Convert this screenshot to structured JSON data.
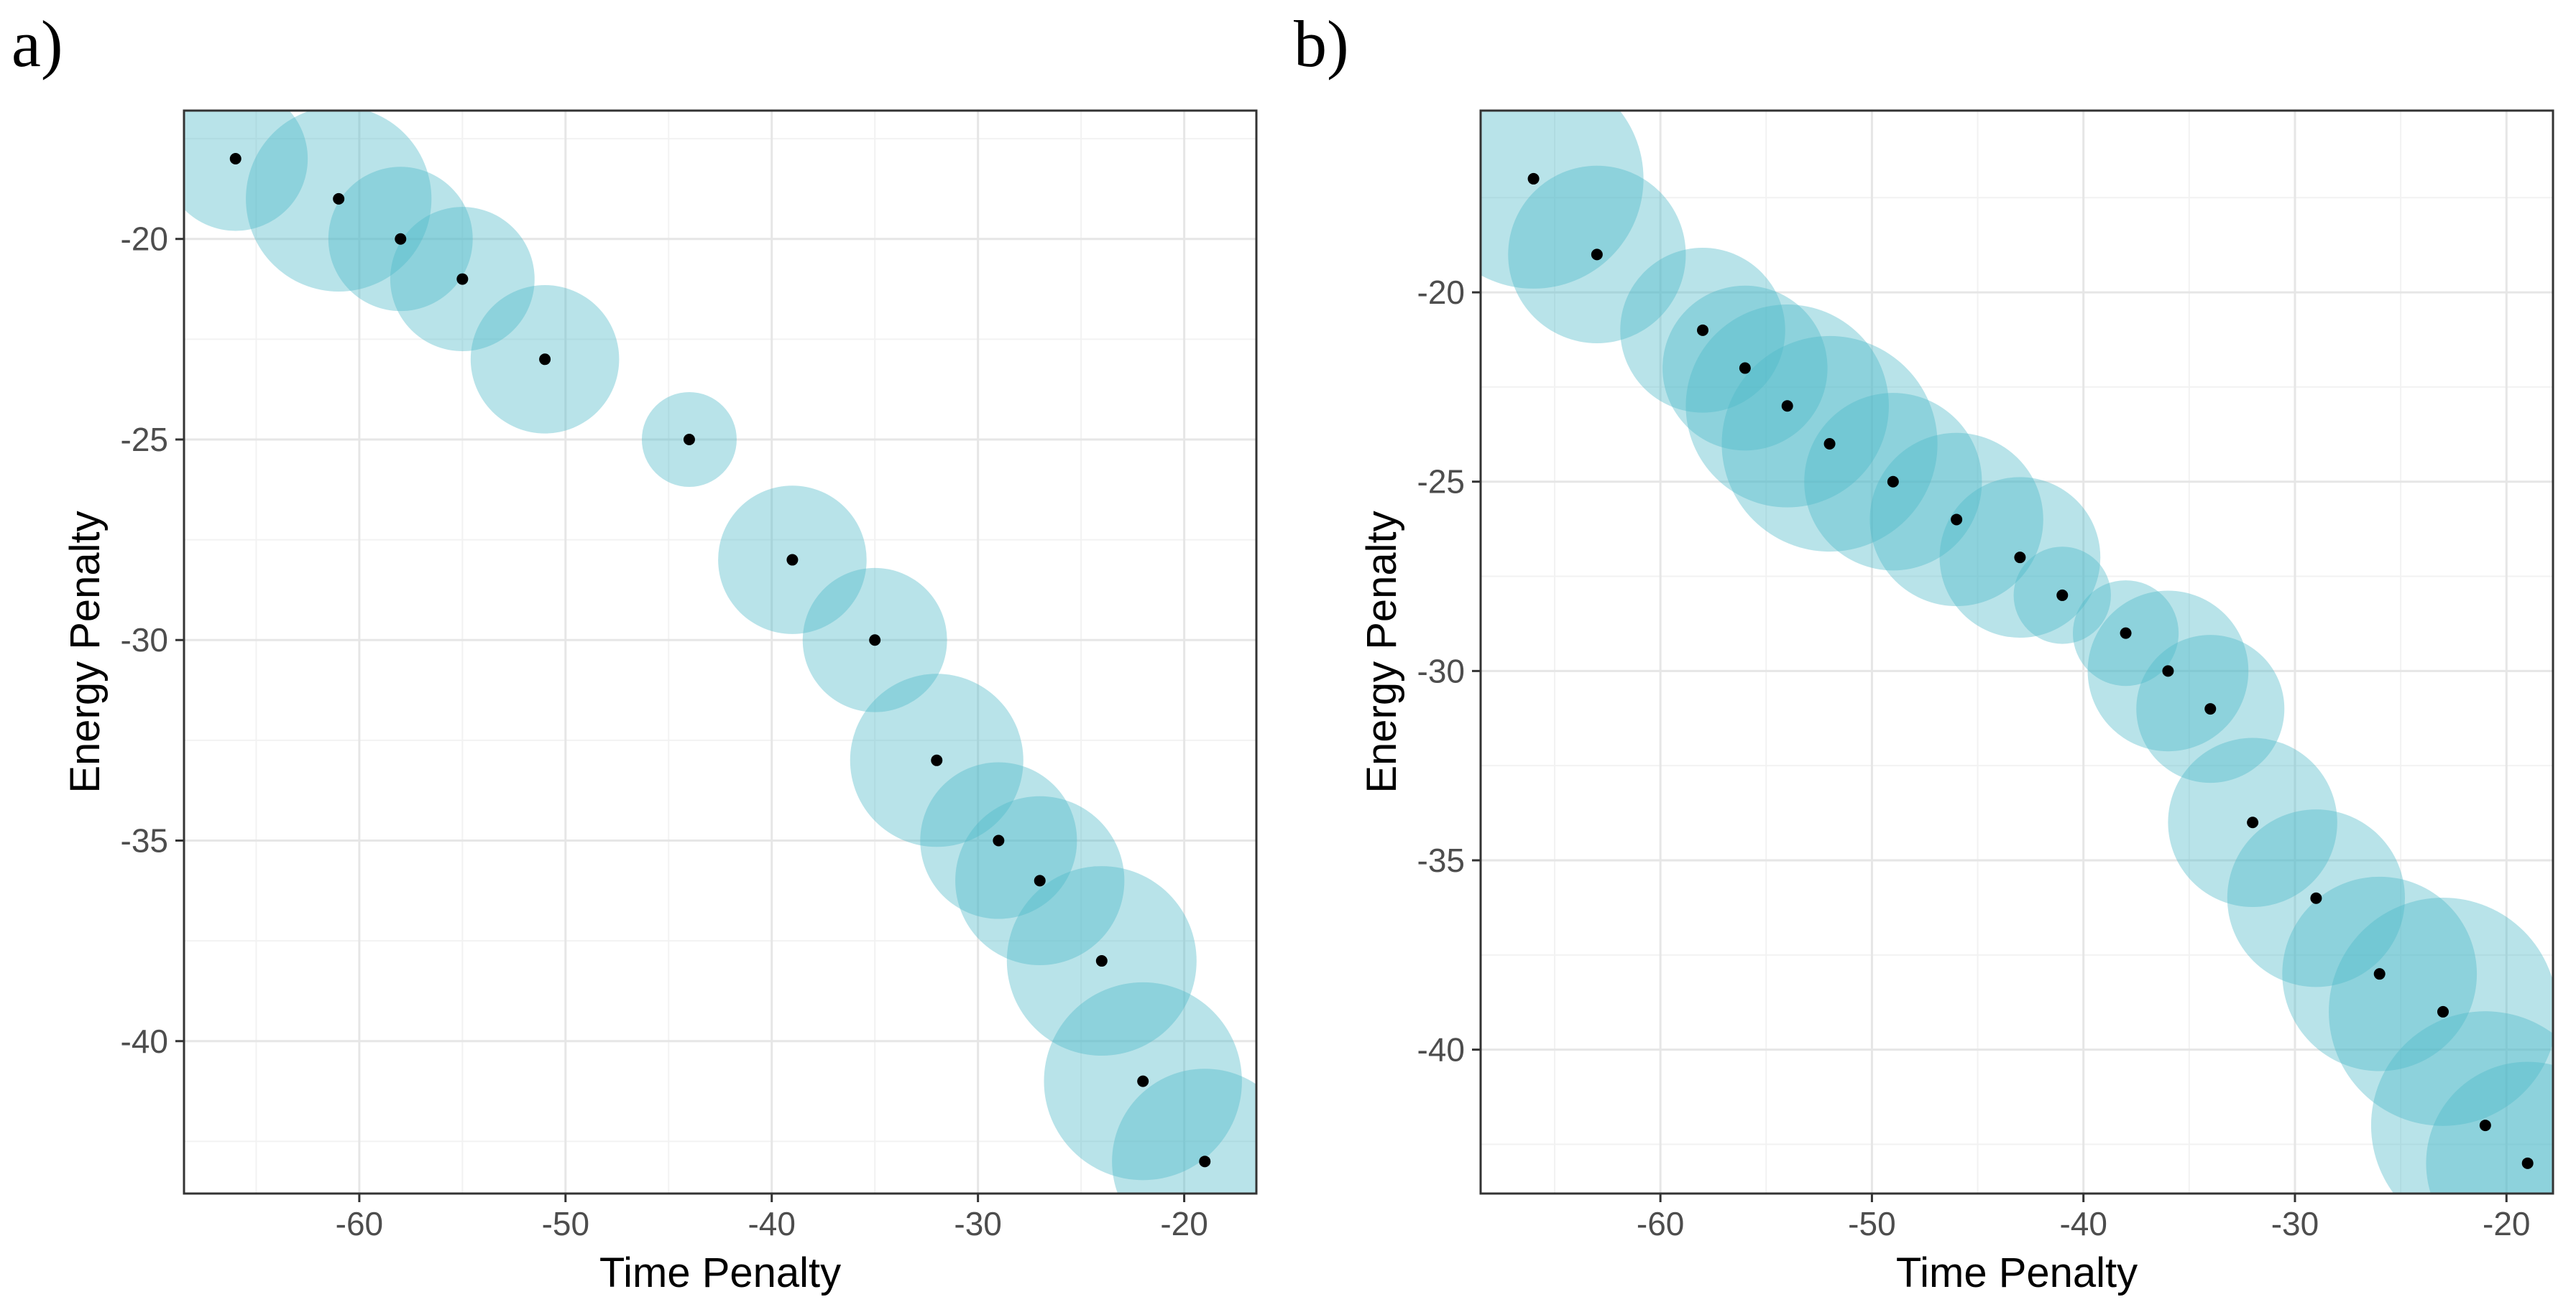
{
  "colors": {
    "bubble": "#4db8c8",
    "point": "#000000",
    "bubble_opacity": 0.4
  },
  "chart_data": [
    {
      "panel_label": "a)",
      "type": "scatter",
      "xlabel": "Time Penalty",
      "ylabel": "Energy Penalty",
      "xlim": [
        -68.5,
        -16.5
      ],
      "ylim": [
        -43.8,
        -16.8
      ],
      "xticks": [
        -60,
        -50,
        -40,
        -30,
        -20
      ],
      "yticks": [
        -20,
        -25,
        -30,
        -35,
        -40
      ],
      "xtick_labels": [
        "-60",
        "-50",
        "-40",
        "-30",
        "-20"
      ],
      "ytick_labels": [
        "-20",
        "-25",
        "-30",
        "-35",
        "-40"
      ],
      "points": [
        {
          "x": -66,
          "y": -18,
          "size": 3.5
        },
        {
          "x": -61,
          "y": -19,
          "size": 4.5
        },
        {
          "x": -58,
          "y": -20,
          "size": 3.5
        },
        {
          "x": -55,
          "y": -21,
          "size": 3.5
        },
        {
          "x": -51,
          "y": -23,
          "size": 3.6
        },
        {
          "x": -44,
          "y": -25,
          "size": 2.3
        },
        {
          "x": -39,
          "y": -28,
          "size": 3.6
        },
        {
          "x": -35,
          "y": -30,
          "size": 3.5
        },
        {
          "x": -32,
          "y": -33,
          "size": 4.2
        },
        {
          "x": -29,
          "y": -35,
          "size": 3.8
        },
        {
          "x": -27,
          "y": -36,
          "size": 4.1
        },
        {
          "x": -24,
          "y": -38,
          "size": 4.6
        },
        {
          "x": -22,
          "y": -41,
          "size": 4.8
        },
        {
          "x": -19,
          "y": -43,
          "size": 4.5
        }
      ]
    },
    {
      "panel_label": "b)",
      "type": "scatter",
      "xlabel": "Time Penalty",
      "ylabel": "Energy Penalty",
      "xlim": [
        -68.5,
        -17.8
      ],
      "ylim": [
        -43.8,
        -15.2
      ],
      "xticks": [
        -60,
        -50,
        -40,
        -30,
        -20
      ],
      "yticks": [
        -20,
        -25,
        -30,
        -35,
        -40
      ],
      "xtick_labels": [
        "-60",
        "-50",
        "-40",
        "-30",
        "-20"
      ],
      "ytick_labels": [
        "-20",
        "-25",
        "-30",
        "-35",
        "-40"
      ],
      "points": [
        {
          "x": -66,
          "y": -17,
          "size": 5.2
        },
        {
          "x": -63,
          "y": -19,
          "size": 4.2
        },
        {
          "x": -58,
          "y": -21,
          "size": 3.9
        },
        {
          "x": -56,
          "y": -22,
          "size": 3.9
        },
        {
          "x": -54,
          "y": -23,
          "size": 4.8
        },
        {
          "x": -52,
          "y": -24,
          "size": 5.1
        },
        {
          "x": -49,
          "y": -25,
          "size": 4.2
        },
        {
          "x": -46,
          "y": -26,
          "size": 4.1
        },
        {
          "x": -43,
          "y": -27,
          "size": 3.8
        },
        {
          "x": -41,
          "y": -28,
          "size": 2.3
        },
        {
          "x": -38,
          "y": -29,
          "size": 2.5
        },
        {
          "x": -36,
          "y": -30,
          "size": 3.8
        },
        {
          "x": -34,
          "y": -31,
          "size": 3.5
        },
        {
          "x": -32,
          "y": -34,
          "size": 4.0
        },
        {
          "x": -29,
          "y": -36,
          "size": 4.2
        },
        {
          "x": -26,
          "y": -38,
          "size": 4.6
        },
        {
          "x": -23,
          "y": -39,
          "size": 5.4
        },
        {
          "x": -21,
          "y": -42,
          "size": 5.4
        },
        {
          "x": -19,
          "y": -43,
          "size": 4.8
        }
      ]
    }
  ]
}
